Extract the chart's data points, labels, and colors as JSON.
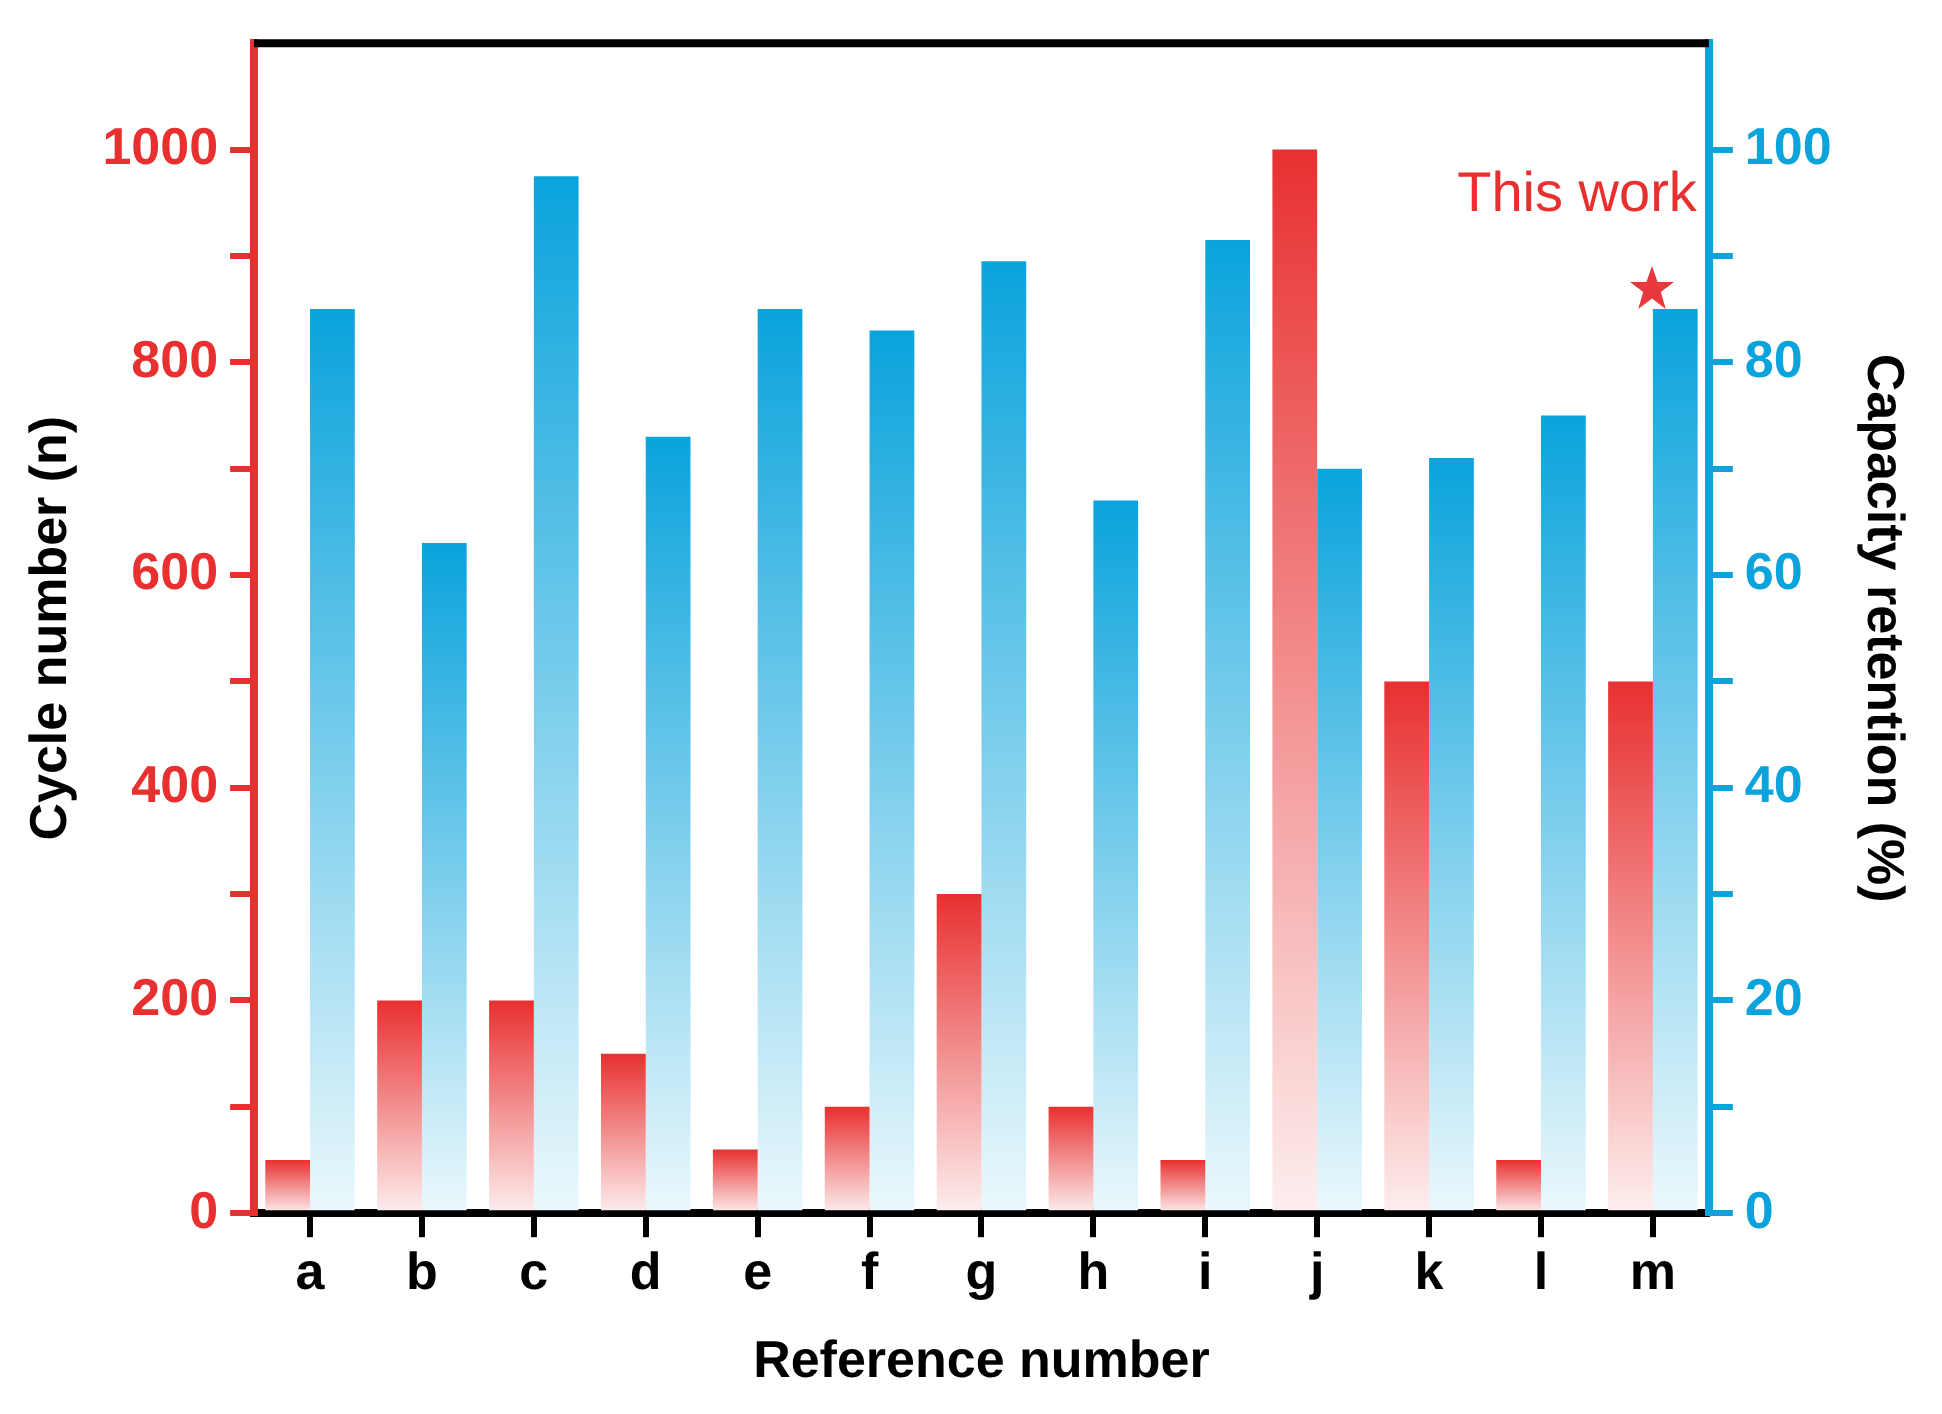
{
  "chart_data": {
    "type": "bar",
    "xlabel": "Reference number",
    "ylabel": "Cycle number (n)",
    "y2label": "Capacity retention (%)",
    "categories": [
      "a",
      "b",
      "c",
      "d",
      "e",
      "f",
      "g",
      "h",
      "i",
      "j",
      "k",
      "l",
      "m"
    ],
    "series": [
      {
        "color": "#e83030",
        "values": [
          50,
          200,
          200,
          150,
          60,
          100,
          300,
          100,
          50,
          1000,
          500,
          50,
          500
        ]
      },
      {
        "color": "#0aa3dc",
        "axis": "y2",
        "values": [
          85,
          63,
          97.5,
          73,
          85,
          83,
          89.5,
          67,
          91.5,
          70,
          71,
          75,
          85
        ]
      }
    ],
    "ylim": [
      0,
      1100
    ],
    "yticks": [
      0,
      {
        "value": 100,
        "label": null
      },
      200,
      {
        "value": 300,
        "label": null
      },
      400,
      {
        "value": 500,
        "label": null
      },
      600,
      {
        "value": 700,
        "label": null
      },
      800,
      {
        "value": 900,
        "label": null
      },
      1000
    ],
    "y2lim": [
      0,
      110
    ],
    "y2ticks": [
      0,
      {
        "value": 10,
        "label": null
      },
      20,
      {
        "value": 30,
        "label": null
      },
      40,
      {
        "value": 50,
        "label": null
      },
      60,
      {
        "value": 70,
        "label": null
      },
      80,
      {
        "value": 90,
        "label": null
      },
      100
    ],
    "annotations": [
      "This work"
    ],
    "grid": false,
    "legend": false
  }
}
